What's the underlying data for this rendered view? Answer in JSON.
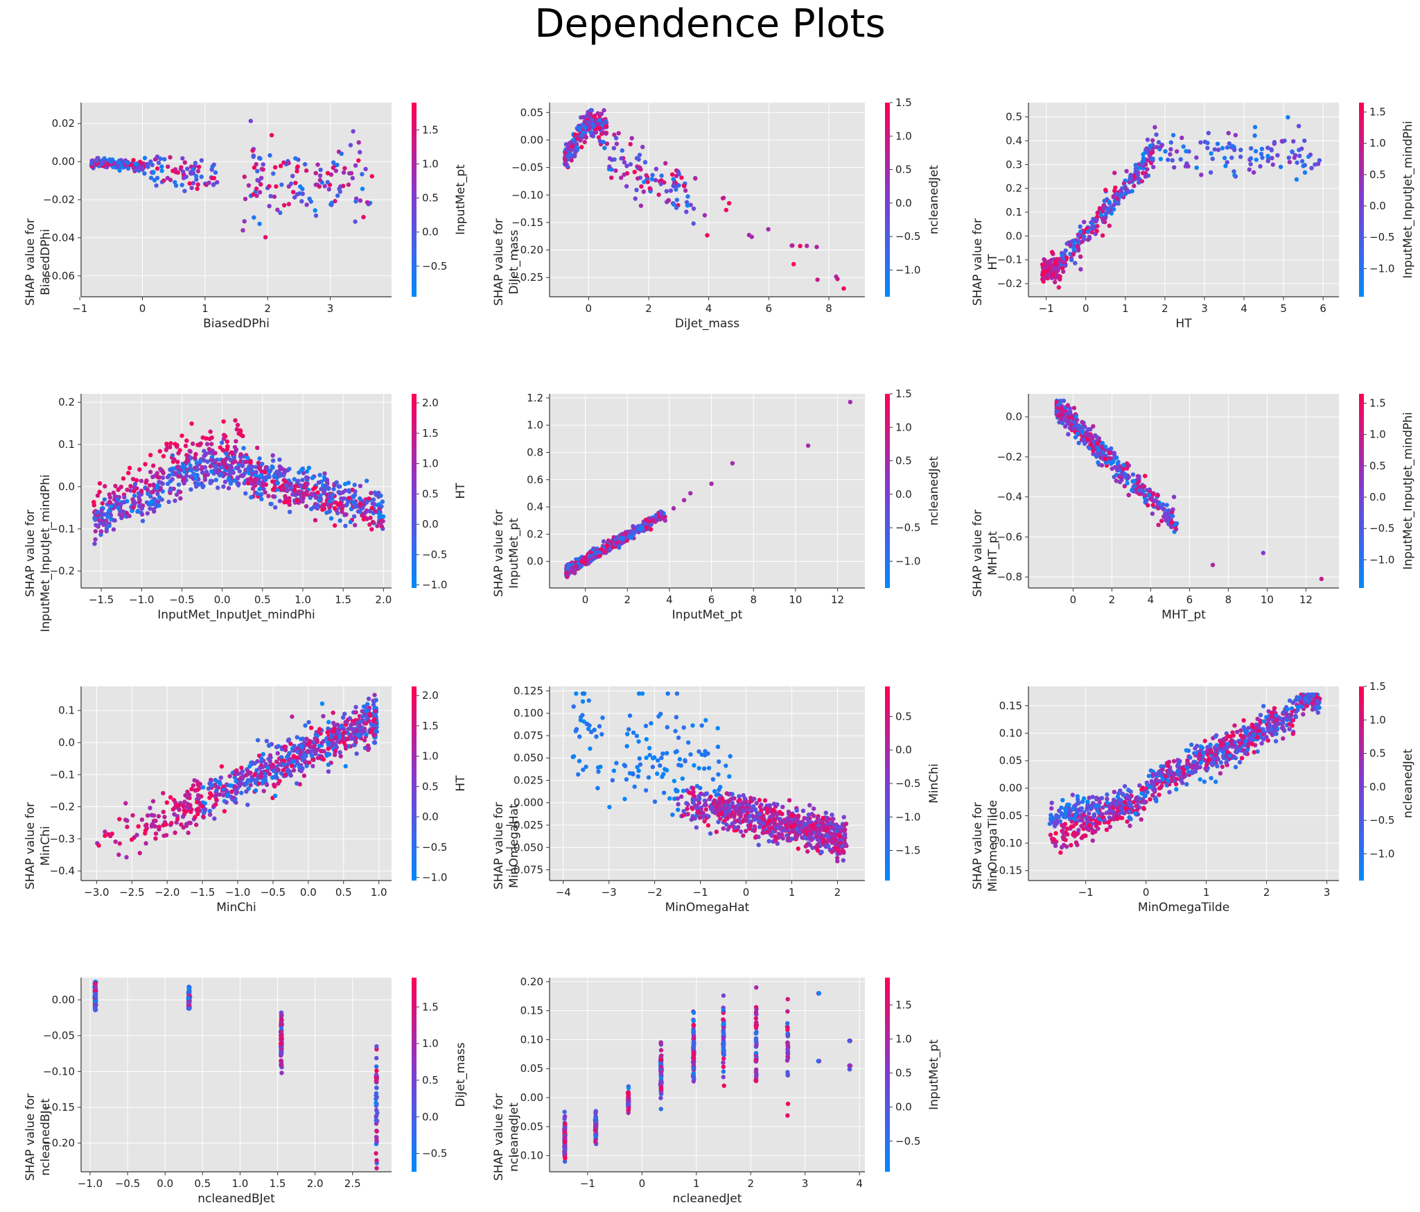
{
  "title": "Dependence Plots",
  "colors": {
    "low": "#008afb",
    "high": "#ff0052",
    "panel_bg": "#e5e5e5",
    "grid": "#ffffff"
  },
  "chart_data": [
    {
      "type": "scatter",
      "xlabel": "BiasedDPhi",
      "ylabel": [
        "SHAP value for",
        "BiasedDPhi"
      ],
      "colorbar_label": "InputMet_pt",
      "xlim": [
        -0.98,
        3.98
      ],
      "ylim": [
        -0.071,
        0.031
      ],
      "xticks": [
        -1,
        0,
        1,
        2,
        3
      ],
      "xtick_labels": [
        "−1",
        "0",
        "1",
        "2",
        "3"
      ],
      "yticks": [
        -0.06,
        -0.04,
        -0.02,
        0.0,
        0.02
      ],
      "ytick_labels": [
        "−0.06",
        "−0.04",
        "−0.02",
        "0.00",
        "0.02"
      ],
      "cbar_range": [
        -0.95,
        1.9
      ],
      "cbar_ticks": [
        -0.5,
        0.0,
        0.5,
        1.0,
        1.5
      ],
      "cbar_tick_labels": [
        "−0.5",
        "0.0",
        "0.5",
        "1.0",
        "1.5"
      ],
      "gen": {
        "kind": "biased",
        "n": 380
      }
    },
    {
      "type": "scatter",
      "xlabel": "DiJet_mass",
      "ylabel": [
        "SHAP value for",
        "DiJet_mass"
      ],
      "colorbar_label": "ncleanedJet",
      "xlim": [
        -1.3,
        9.2
      ],
      "ylim": [
        -0.285,
        0.068
      ],
      "xticks": [
        0,
        2,
        4,
        6,
        8
      ],
      "xtick_labels": [
        "0",
        "2",
        "4",
        "6",
        "8"
      ],
      "yticks": [
        -0.25,
        -0.2,
        -0.15,
        -0.1,
        -0.05,
        0.0,
        0.05
      ],
      "ytick_labels": [
        "−0.25",
        "−0.20",
        "−0.15",
        "−0.10",
        "−0.05",
        "0.00",
        "0.05"
      ],
      "cbar_range": [
        -1.4,
        1.5
      ],
      "cbar_ticks": [
        -1.0,
        -0.5,
        0.0,
        0.5,
        1.0,
        1.5
      ],
      "cbar_tick_labels": [
        "−1.0",
        "−0.5",
        "0.0",
        "0.5",
        "1.0",
        "1.5"
      ],
      "gen": {
        "kind": "dijet",
        "n": 360
      }
    },
    {
      "type": "scatter",
      "xlabel": "HT",
      "ylabel": [
        "SHAP value for",
        "HT"
      ],
      "colorbar_label": "InputMet_InputJet_mindPhi",
      "xlim": [
        -1.45,
        6.4
      ],
      "ylim": [
        -0.255,
        0.56
      ],
      "xticks": [
        -1,
        0,
        1,
        2,
        3,
        4,
        5,
        6
      ],
      "xtick_labels": [
        "−1",
        "0",
        "1",
        "2",
        "3",
        "4",
        "5",
        "6"
      ],
      "yticks": [
        -0.2,
        -0.1,
        0.0,
        0.1,
        0.2,
        0.3,
        0.4,
        0.5
      ],
      "ytick_labels": [
        "−0.2",
        "−0.1",
        "0.0",
        "0.1",
        "0.2",
        "0.3",
        "0.4",
        "0.5"
      ],
      "cbar_range": [
        -1.45,
        1.65
      ],
      "cbar_ticks": [
        -1.0,
        -0.5,
        0.0,
        0.5,
        1.0,
        1.5
      ],
      "cbar_tick_labels": [
        "−1.0",
        "−0.5",
        "0.0",
        "0.5",
        "1.0",
        "1.5"
      ],
      "gen": {
        "kind": "ht",
        "n": 480
      }
    },
    {
      "type": "scatter",
      "xlabel": "InputMet_InputJet_mindPhi",
      "ylabel": [
        "SHAP value for",
        "InputMet_InputJet_mindPhi"
      ],
      "colorbar_label": "HT",
      "xlim": [
        -1.75,
        2.1
      ],
      "ylim": [
        -0.24,
        0.22
      ],
      "xticks": [
        -1.5,
        -1.0,
        -0.5,
        0.0,
        0.5,
        1.0,
        1.5,
        2.0
      ],
      "xtick_labels": [
        "−1.5",
        "−1.0",
        "−0.5",
        "0.0",
        "0.5",
        "1.0",
        "1.5",
        "2.0"
      ],
      "yticks": [
        -0.2,
        -0.1,
        0.0,
        0.1,
        0.2
      ],
      "ytick_labels": [
        "−0.2",
        "−0.1",
        "0.0",
        "0.1",
        "0.2"
      ],
      "cbar_range": [
        -1.05,
        2.15
      ],
      "cbar_ticks": [
        -1.0,
        -0.5,
        0.0,
        0.5,
        1.0,
        1.5,
        2.0
      ],
      "cbar_tick_labels": [
        "−1.0",
        "−0.5",
        "0.0",
        "0.5",
        "1.0",
        "1.5",
        "2.0"
      ],
      "gen": {
        "kind": "mindphi",
        "n": 950
      }
    },
    {
      "type": "scatter",
      "xlabel": "InputMet_pt",
      "ylabel": [
        "SHAP value for",
        "InputMet_pt"
      ],
      "colorbar_label": "ncleanedJet",
      "xlim": [
        -1.7,
        13.3
      ],
      "ylim": [
        -0.195,
        1.23
      ],
      "xticks": [
        0,
        2,
        4,
        6,
        8,
        10,
        12
      ],
      "xtick_labels": [
        "0",
        "2",
        "4",
        "6",
        "8",
        "10",
        "12"
      ],
      "yticks": [
        0.0,
        0.2,
        0.4,
        0.6,
        0.8,
        1.0,
        1.2
      ],
      "ytick_labels": [
        "0.0",
        "0.2",
        "0.4",
        "0.6",
        "0.8",
        "1.0",
        "1.2"
      ],
      "cbar_range": [
        -1.4,
        1.5
      ],
      "cbar_ticks": [
        -1.0,
        -0.5,
        0.0,
        0.5,
        1.0,
        1.5
      ],
      "cbar_tick_labels": [
        "−1.0",
        "−0.5",
        "0.0",
        "0.5",
        "1.0",
        "1.5"
      ],
      "gen": {
        "kind": "inputmet",
        "n": 550
      }
    },
    {
      "type": "scatter",
      "xlabel": "MHT_pt",
      "ylabel": [
        "SHAP value for",
        "MHT_pt"
      ],
      "colorbar_label": "InputMet_InputJet_mindPhi",
      "xlim": [
        -2.3,
        13.7
      ],
      "ylim": [
        -0.855,
        0.115
      ],
      "xticks": [
        0,
        2,
        4,
        6,
        8,
        10,
        12
      ],
      "xtick_labels": [
        "0",
        "2",
        "4",
        "6",
        "8",
        "10",
        "12"
      ],
      "yticks": [
        -0.8,
        -0.6,
        -0.4,
        -0.2,
        0.0
      ],
      "ytick_labels": [
        "−0.8",
        "−0.6",
        "−0.4",
        "−0.2",
        "0.0"
      ],
      "cbar_range": [
        -1.45,
        1.65
      ],
      "cbar_ticks": [
        -1.0,
        -0.5,
        0.0,
        0.5,
        1.0,
        1.5
      ],
      "cbar_tick_labels": [
        "−1.0",
        "−0.5",
        "0.0",
        "0.5",
        "1.0",
        "1.5"
      ],
      "gen": {
        "kind": "mht",
        "n": 450
      }
    },
    {
      "type": "scatter",
      "xlabel": "MinChi",
      "ylabel": [
        "SHAP value for",
        "MinChi"
      ],
      "colorbar_label": "HT",
      "xlim": [
        -3.22,
        1.18
      ],
      "ylim": [
        -0.43,
        0.175
      ],
      "xticks": [
        -3.0,
        -2.5,
        -2.0,
        -1.5,
        -1.0,
        -0.5,
        0.0,
        0.5,
        1.0
      ],
      "xtick_labels": [
        "−3.0",
        "−2.5",
        "−2.0",
        "−1.5",
        "−1.0",
        "−0.5",
        "0.0",
        "0.5",
        "1.0"
      ],
      "yticks": [
        -0.4,
        -0.3,
        -0.2,
        -0.1,
        0.0,
        0.1
      ],
      "ytick_labels": [
        "−0.4",
        "−0.3",
        "−0.2",
        "−0.1",
        "0.0",
        "0.1"
      ],
      "cbar_range": [
        -1.05,
        2.15
      ],
      "cbar_ticks": [
        -1.0,
        -0.5,
        0.0,
        0.5,
        1.0,
        1.5,
        2.0
      ],
      "cbar_tick_labels": [
        "−1.0",
        "−0.5",
        "0.0",
        "0.5",
        "1.0",
        "1.5",
        "2.0"
      ],
      "gen": {
        "kind": "minchi",
        "n": 800
      }
    },
    {
      "type": "scatter",
      "xlabel": "MinOmegaHat",
      "ylabel": [
        "SHAP value for",
        "MinOmegaHat"
      ],
      "colorbar_label": "MinChi",
      "xlim": [
        -4.3,
        2.6
      ],
      "ylim": [
        -0.087,
        0.13
      ],
      "xticks": [
        -4,
        -3,
        -2,
        -1,
        0,
        1,
        2
      ],
      "xtick_labels": [
        "−4",
        "−3",
        "−2",
        "−1",
        "0",
        "1",
        "2"
      ],
      "yticks": [
        -0.075,
        -0.05,
        -0.025,
        0.0,
        0.025,
        0.05,
        0.075,
        0.1,
        0.125
      ],
      "ytick_labels": [
        "−0.075",
        "−0.050",
        "−0.025",
        "0.000",
        "0.025",
        "0.050",
        "0.075",
        "0.100",
        "0.125"
      ],
      "cbar_range": [
        -1.95,
        0.95
      ],
      "cbar_ticks": [
        -1.5,
        -1.0,
        -0.5,
        0.0,
        0.5
      ],
      "cbar_tick_labels": [
        "−1.5",
        "−1.0",
        "−0.5",
        "0.0",
        "0.5"
      ],
      "gen": {
        "kind": "omegahat",
        "n": 900
      }
    },
    {
      "type": "scatter",
      "xlabel": "MinOmegaTilde",
      "ylabel": [
        "SHAP value for",
        "MinOmegaTilde"
      ],
      "colorbar_label": "ncleanedJet",
      "xlim": [
        -1.95,
        3.2
      ],
      "ylim": [
        -0.168,
        0.185
      ],
      "xticks": [
        -1,
        0,
        1,
        2,
        3
      ],
      "xtick_labels": [
        "−1",
        "0",
        "1",
        "2",
        "3"
      ],
      "yticks": [
        -0.15,
        -0.1,
        -0.05,
        0.0,
        0.05,
        0.1,
        0.15
      ],
      "ytick_labels": [
        "−0.15",
        "−0.10",
        "−0.05",
        "0.00",
        "0.05",
        "0.10",
        "0.15"
      ],
      "cbar_range": [
        -1.4,
        1.5
      ],
      "cbar_ticks": [
        -1.0,
        -0.5,
        0.0,
        0.5,
        1.0,
        1.5
      ],
      "cbar_tick_labels": [
        "−1.0",
        "−0.5",
        "0.0",
        "0.5",
        "1.0",
        "1.5"
      ],
      "gen": {
        "kind": "omegatilde",
        "n": 950
      }
    },
    {
      "type": "scatter",
      "xlabel": "ncleanedBJet",
      "ylabel": [
        "SHAP value for",
        "ncleanedBJet"
      ],
      "colorbar_label": "DiJet_mass",
      "xlim": [
        -1.12,
        3.02
      ],
      "ylim": [
        -0.24,
        0.031
      ],
      "xticks": [
        -1.0,
        -0.5,
        0.0,
        0.5,
        1.0,
        1.5,
        2.0,
        2.5
      ],
      "xtick_labels": [
        "−1.0",
        "−0.5",
        "0.0",
        "0.5",
        "1.0",
        "1.5",
        "2.0",
        "2.5"
      ],
      "yticks": [
        -0.2,
        -0.15,
        -0.1,
        -0.05,
        0.0
      ],
      "ytick_labels": [
        "−0.20",
        "−0.15",
        "−0.10",
        "−0.05",
        "0.00"
      ],
      "cbar_range": [
        -0.75,
        1.9
      ],
      "cbar_ticks": [
        -0.5,
        0.0,
        0.5,
        1.0,
        1.5
      ],
      "cbar_tick_labels": [
        "−0.5",
        "0.0",
        "0.5",
        "1.0",
        "1.5"
      ],
      "gen": {
        "kind": "bjet",
        "n": 400
      }
    },
    {
      "type": "scatter",
      "xlabel": "ncleanedJet",
      "ylabel": [
        "SHAP value for",
        "ncleanedJet"
      ],
      "colorbar_label": "InputMet_pt",
      "xlim": [
        -1.7,
        4.1
      ],
      "ylim": [
        -0.128,
        0.207
      ],
      "xticks": [
        -1,
        0,
        1,
        2,
        3,
        4
      ],
      "xtick_labels": [
        "−1",
        "0",
        "1",
        "2",
        "3",
        "4"
      ],
      "yticks": [
        -0.1,
        -0.05,
        0.0,
        0.05,
        0.1,
        0.15,
        0.2
      ],
      "ytick_labels": [
        "−0.10",
        "−0.05",
        "0.00",
        "0.05",
        "0.10",
        "0.15",
        "0.20"
      ],
      "cbar_range": [
        -0.95,
        1.9
      ],
      "cbar_ticks": [
        -0.5,
        0.0,
        0.5,
        1.0,
        1.5
      ],
      "cbar_tick_labels": [
        "−0.5",
        "0.0",
        "0.5",
        "1.0",
        "1.5"
      ],
      "gen": {
        "kind": "njet",
        "n": 600
      }
    }
  ]
}
